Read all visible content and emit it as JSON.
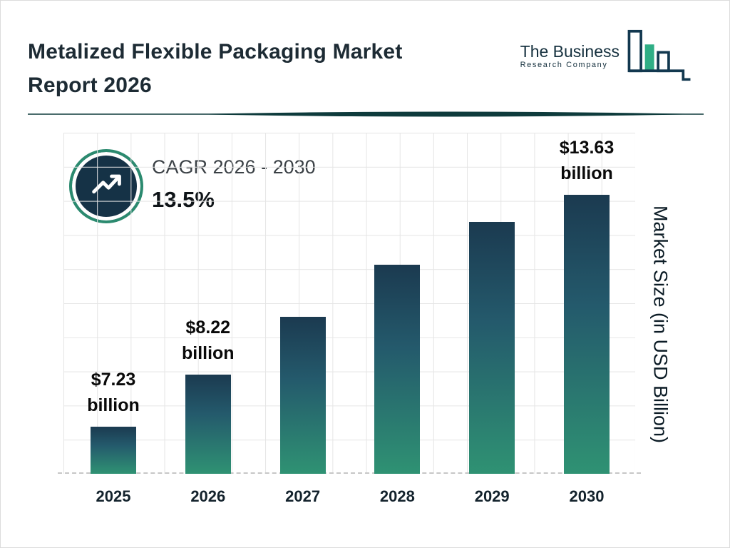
{
  "header": {
    "title_line1": "Metalized Flexible Packaging Market",
    "title_line2": "Report 2026"
  },
  "logo": {
    "name": "The Business",
    "subtitle": "Research Company"
  },
  "cagr": {
    "label": "CAGR 2026 - 2030",
    "value": "13.5%"
  },
  "chart_data": {
    "type": "bar",
    "title": "Metalized Flexible Packaging Market Report 2026",
    "categories": [
      "2025",
      "2026",
      "2027",
      "2028",
      "2029",
      "2030"
    ],
    "values": [
      7.23,
      8.22,
      9.33,
      10.59,
      12.02,
      13.63
    ],
    "data_labels": [
      "$7.23 billion",
      "$8.22 billion",
      "",
      "",
      "",
      "$13.63 billion"
    ],
    "xlabel": "",
    "ylabel": "Market Size (in USD Billion)",
    "ylim": [
      0,
      14
    ],
    "grid": true,
    "legend": false,
    "bar_gradient_top": "#1B3A50",
    "bar_gradient_bottom": "#2F9273",
    "bar_height_fractions": [
      0.169,
      0.356,
      0.563,
      0.749,
      0.903,
      1.0
    ]
  },
  "colors": {
    "navy": "#17334A",
    "teal": "#2F9273",
    "ring_teal": "#2B8A6F",
    "divider": "#0E3B3C"
  }
}
